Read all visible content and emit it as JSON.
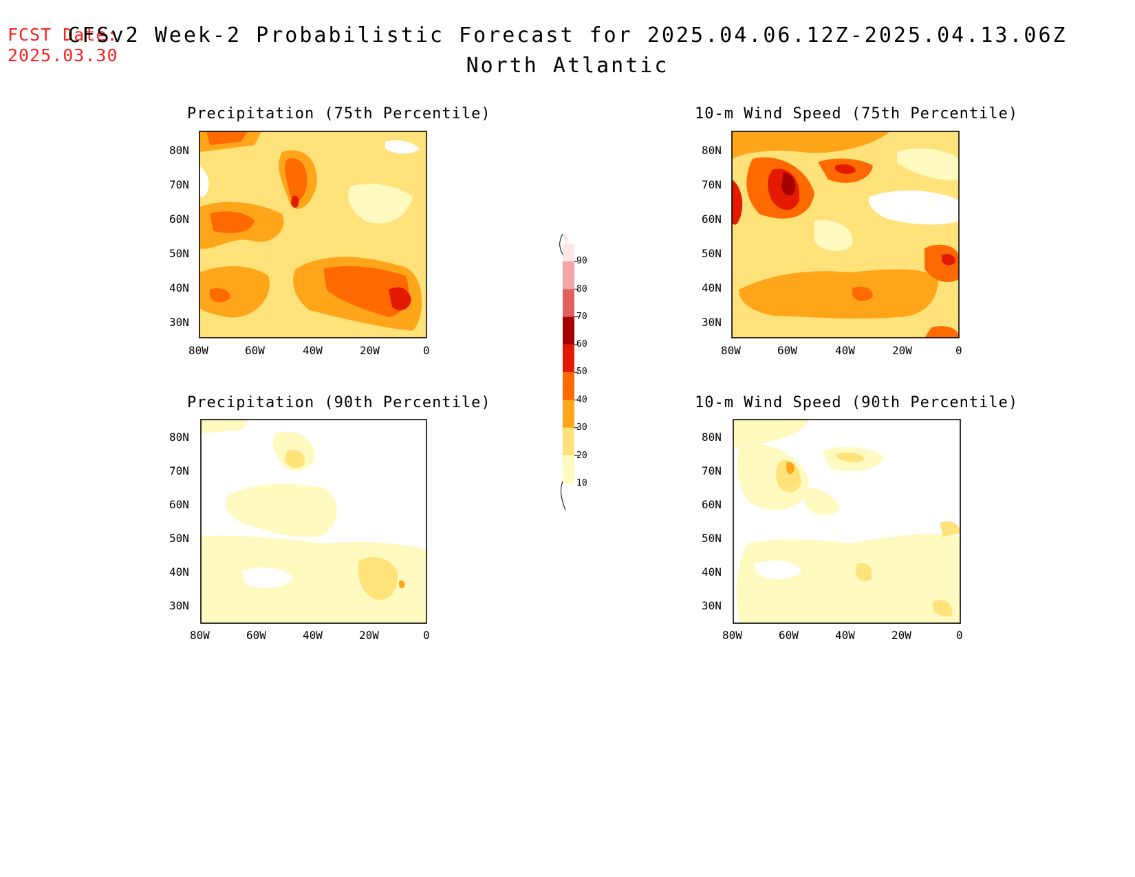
{
  "fcst_date": {
    "label": "FCST Date:",
    "value": "2025.03.30"
  },
  "title": {
    "line1": "CFSv2 Week-2 Probabilistic Forecast for 2025.04.06.12Z-2025.04.13.06Z",
    "line2": "North Atlantic"
  },
  "panels": [
    {
      "id": "precip75",
      "title": "Precipitation (75th Percentile)"
    },
    {
      "id": "wind75",
      "title": "10-m Wind Speed (75th Percentile)"
    },
    {
      "id": "precip90",
      "title": "Precipitation (90th Percentile)"
    },
    {
      "id": "wind90",
      "title": "10-m Wind Speed (90th Percentile)"
    }
  ],
  "axes": {
    "lat_labels": [
      "80N",
      "70N",
      "60N",
      "50N",
      "40N",
      "30N"
    ],
    "lon_labels": [
      "80W",
      "60W",
      "40W",
      "20W",
      "0"
    ]
  },
  "colorbar": {
    "labels": [
      "90",
      "80",
      "70",
      "60",
      "50",
      "40",
      "30",
      "20",
      "10"
    ],
    "colors": {
      "10": "#fffac0",
      "20": "#ffe27a",
      "30": "#ffa51a",
      "40": "#ff6a00",
      "50": "#e41a00",
      "60": "#a60000",
      "70": "#e06060",
      "80": "#f4a6a6",
      "90": "#ffe6e6"
    }
  }
}
